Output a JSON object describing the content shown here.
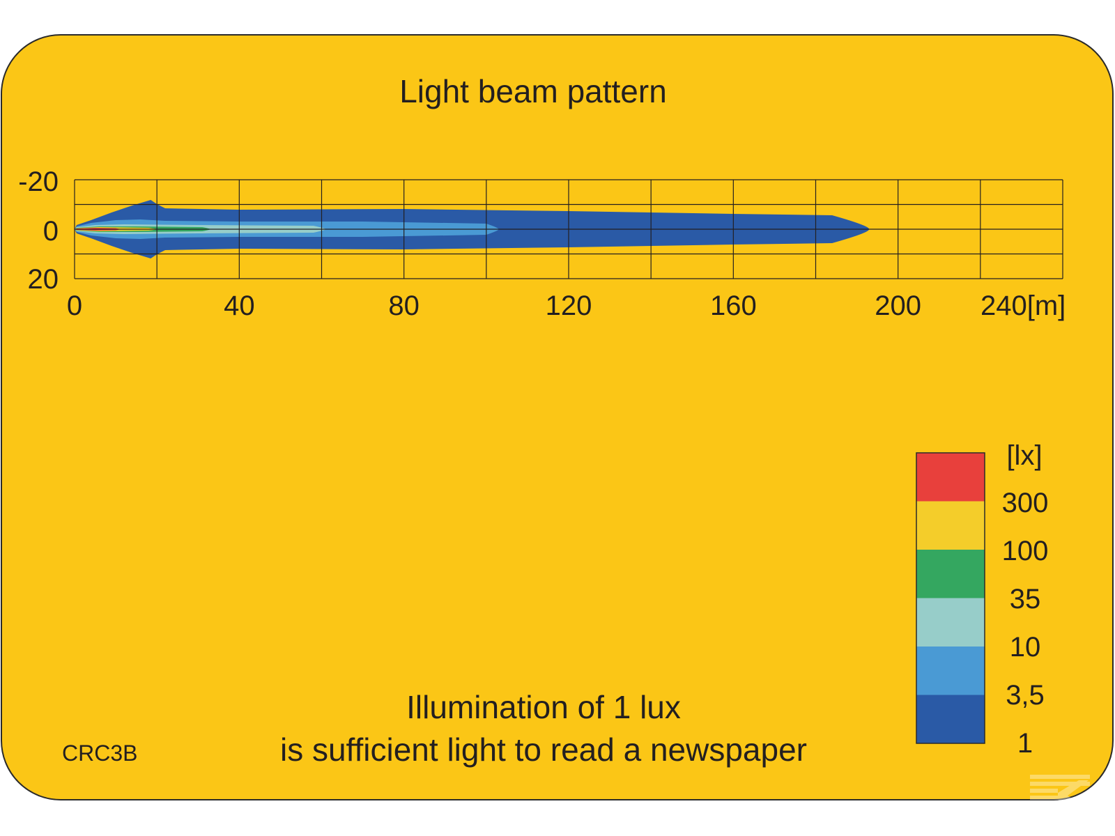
{
  "chart_data": {
    "type": "heatmap",
    "title": "Light beam pattern",
    "x_ticks": [
      "0",
      "40",
      "80",
      "120",
      "160",
      "200",
      "240[m]"
    ],
    "x_range": [
      0,
      240
    ],
    "y_ticks": [
      "-20",
      "0",
      "20"
    ],
    "y_range": [
      -20,
      20
    ],
    "grid": true,
    "contours": [
      {
        "level_lx": 1,
        "color": "#2a5aa6",
        "max_range_m": 193
      },
      {
        "level_lx": 3.5,
        "color": "#4a9ad4",
        "max_range_m": 103
      },
      {
        "level_lx": 10,
        "color": "#97cdc9",
        "max_range_m": 61
      },
      {
        "level_lx": 35,
        "color": "#34a760",
        "max_range_m": 33
      },
      {
        "level_lx": 100,
        "color": "#f4cd2a",
        "max_range_m": 20
      },
      {
        "level_lx": 300,
        "color": "#e8403c",
        "max_range_m": 11
      }
    ],
    "legend": {
      "unit": "[lx]",
      "labels": [
        "300",
        "100",
        "35",
        "10",
        "3,5",
        "1"
      ],
      "colors": [
        "#e8403c",
        "#f4cd2a",
        "#34a760",
        "#97cdc9",
        "#4a9ad4",
        "#2a5aa6"
      ],
      "placement": "bottom-right"
    }
  },
  "caption": {
    "line1": "Illumination of 1 lux",
    "line2": "is sufficient light to read a newspaper"
  },
  "model_code": "CRC3B",
  "colors": {
    "background": "#fbc616",
    "grid": "#231f20",
    "text": "#231f20"
  }
}
